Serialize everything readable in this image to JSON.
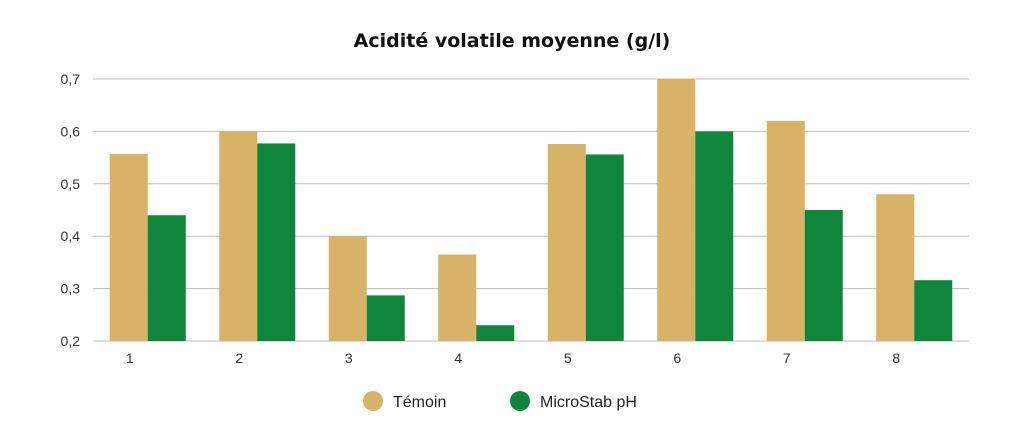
{
  "chart_data": {
    "type": "bar",
    "title": "Acidité volatile moyenne (g/l)",
    "xlabel": "",
    "ylabel": "",
    "categories": [
      "1",
      "2",
      "3",
      "4",
      "5",
      "6",
      "7",
      "8"
    ],
    "ylim": [
      0.2,
      0.7
    ],
    "yticks": [
      0.2,
      0.3,
      0.4,
      0.5,
      0.6,
      0.7
    ],
    "ytick_labels": [
      "0,2",
      "0,3",
      "0,4",
      "0,5",
      "0,6",
      "0,7"
    ],
    "grid": true,
    "legend_position": "bottom",
    "series": [
      {
        "name": "Témoin",
        "color": "#D8B266",
        "values": [
          0.557,
          0.6,
          0.4,
          0.365,
          0.576,
          0.7,
          0.62,
          0.48
        ]
      },
      {
        "name": "MicroStab pH",
        "color": "#10863D",
        "values": [
          0.44,
          0.577,
          0.287,
          0.23,
          0.556,
          0.6,
          0.45,
          0.316
        ]
      }
    ]
  }
}
